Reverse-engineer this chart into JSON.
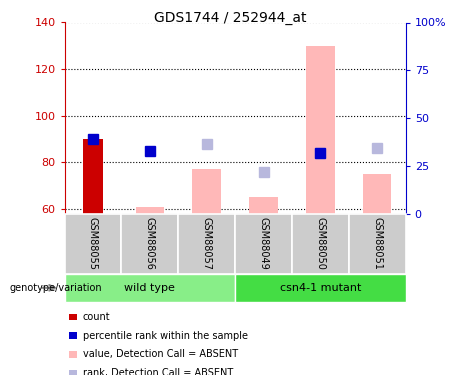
{
  "title": "GDS1744 / 252944_at",
  "samples": [
    "GSM88055",
    "GSM88056",
    "GSM88057",
    "GSM88049",
    "GSM88050",
    "GSM88051"
  ],
  "ylim_left": [
    58,
    140
  ],
  "ylim_right": [
    0,
    100
  ],
  "left_ticks": [
    60,
    80,
    100,
    120,
    140
  ],
  "right_ticks": [
    0,
    25,
    50,
    75,
    100
  ],
  "right_tick_labels": [
    "0",
    "25",
    "50",
    "75",
    "100%"
  ],
  "count_bars": {
    "GSM88055": 90
  },
  "percentile_rank": {
    "GSM88055": 90,
    "GSM88056": 85,
    "GSM88050": 84
  },
  "absent_value_bars": {
    "GSM88056": 61,
    "GSM88057": 77,
    "GSM88049": 65,
    "GSM88050": 130,
    "GSM88051": 75
  },
  "absent_rank_squares": {
    "GSM88057": 88,
    "GSM88049": 76,
    "GSM88050": 84,
    "GSM88051": 86
  },
  "colors": {
    "count": "#cc0000",
    "percentile_rank": "#0000cc",
    "absent_value": "#ffb8b8",
    "absent_rank": "#b8b8dd",
    "wild_type_bg": "#88ee88",
    "mutant_bg": "#44dd44",
    "sample_bg": "#cccccc",
    "left_axis": "#cc0000",
    "right_axis": "#0000cc"
  },
  "bar_width": 0.35,
  "absent_bar_width": 0.5,
  "marker_size": 7,
  "genotype_label": "genotype/variation",
  "wild_type_label": "wild type",
  "mutant_label": "csn4-1 mutant",
  "legend_items": [
    {
      "label": "count",
      "color": "#cc0000"
    },
    {
      "label": "percentile rank within the sample",
      "color": "#0000cc"
    },
    {
      "label": "value, Detection Call = ABSENT",
      "color": "#ffb8b8"
    },
    {
      "label": "rank, Detection Call = ABSENT",
      "color": "#b8b8dd"
    }
  ]
}
